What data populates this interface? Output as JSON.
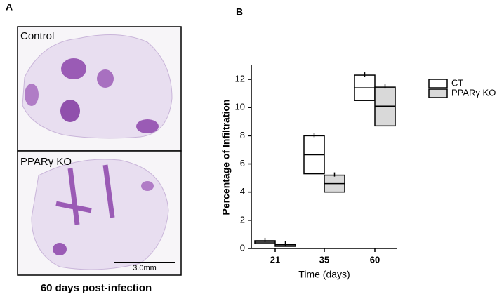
{
  "panels": {
    "a": "A",
    "b": "B"
  },
  "panel_a": {
    "top_label": "Control",
    "bottom_label": "PPARγ KO",
    "scale_bar": "3.0mm",
    "caption": "60 days post-infection"
  },
  "chart_data": {
    "type": "floating-box",
    "ylabel": "Percentage of Infiltration",
    "xlabel": "Time (days)",
    "categories": [
      "21",
      "35",
      "60"
    ],
    "series": [
      {
        "name": "CT",
        "color": "#ffffff",
        "min": [
          0.35,
          5.3,
          10.5
        ],
        "mean": [
          0.45,
          6.65,
          11.4
        ],
        "max": [
          0.55,
          8.0,
          12.3
        ]
      },
      {
        "name": "PPARγ KO",
        "color": "#d9d9d9",
        "min": [
          0.15,
          4.0,
          8.7
        ],
        "mean": [
          0.25,
          4.6,
          10.1
        ],
        "max": [
          0.3,
          5.2,
          11.45
        ]
      }
    ],
    "ylim": [
      0,
      13
    ],
    "yticks": [
      0,
      2,
      4,
      6,
      8,
      10,
      12
    ]
  }
}
